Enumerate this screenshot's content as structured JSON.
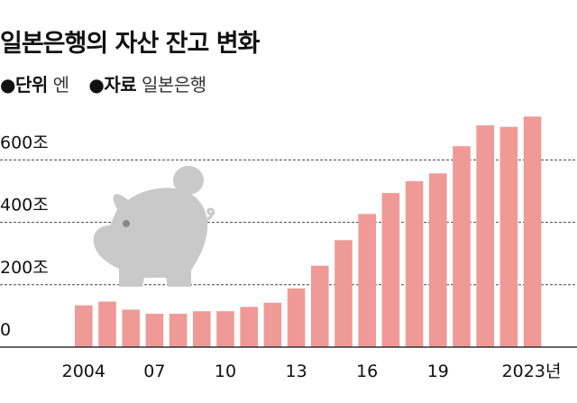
{
  "chart_data": {
    "type": "bar",
    "title": "일본은행의 자산 잔고 변화",
    "meta": [
      {
        "label": "●단위",
        "value": "엔"
      },
      {
        "label": "●자료",
        "value": "일본은행"
      }
    ],
    "categories": [
      "2004",
      "2005",
      "2006",
      "2007",
      "2008",
      "2009",
      "2010",
      "2011",
      "2012",
      "2013",
      "2014",
      "2015",
      "2016",
      "2017",
      "2018",
      "2019",
      "2020",
      "2021",
      "2022",
      "2023"
    ],
    "values": [
      134,
      146,
      120,
      107,
      107,
      115,
      115,
      129,
      142,
      188,
      261,
      343,
      427,
      494,
      532,
      557,
      644,
      711,
      706,
      739
    ],
    "unit": "조 엔",
    "x_tick_labels": [
      {
        "category": "2004",
        "label": "2004"
      },
      {
        "category": "2007",
        "label": "07"
      },
      {
        "category": "2010",
        "label": "10"
      },
      {
        "category": "2013",
        "label": "13"
      },
      {
        "category": "2016",
        "label": "16"
      },
      {
        "category": "2019",
        "label": "19"
      },
      {
        "category": "2023",
        "label": "2023년"
      }
    ],
    "y_ticks": [
      {
        "value": 0,
        "label": "0"
      },
      {
        "value": 200,
        "label": "200조"
      },
      {
        "value": 400,
        "label": "400조"
      },
      {
        "value": 600,
        "label": "600조"
      }
    ],
    "ylim": [
      0,
      760
    ],
    "grid": "dashed horizontal",
    "colors": {
      "bar": "#ef9a97",
      "illustration": "#c9c9c9",
      "grid": "#444444"
    },
    "illustration": "piggy-bank with coin"
  }
}
